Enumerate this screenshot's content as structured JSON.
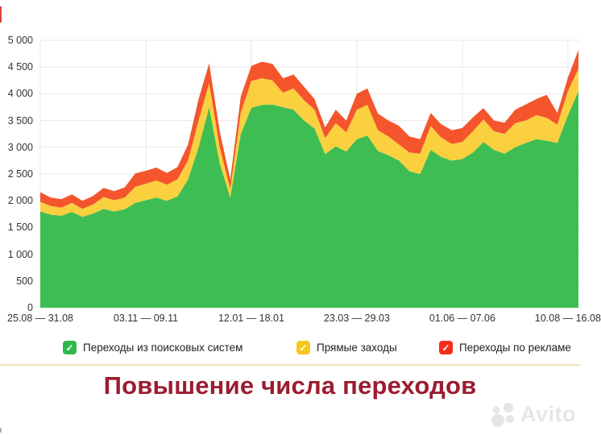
{
  "title": "Повышение числа переходов",
  "watermark": {
    "brand": "Avito"
  },
  "legend": [
    {
      "label": "Переходы из поисковых систем",
      "color": "#2db84b"
    },
    {
      "label": "Прямые заходы",
      "color": "#f7c620"
    },
    {
      "label": "Переходы по рекламе",
      "color": "#f42e17"
    }
  ],
  "colors": {
    "search_area": "#3ebe52",
    "direct_area": "#fbd03f",
    "ads_area": "#f4552c",
    "grid": "#e8e8e8",
    "axis_text": "#333333",
    "title_text": "#9b1c30",
    "divider": "#f1e2b6",
    "watermark": "#e6e6e6"
  },
  "chart_data": {
    "type": "area",
    "stacked": true,
    "title": "",
    "xlabel": "",
    "ylabel": "",
    "grid": true,
    "legend_position": "bottom",
    "ylim": [
      0,
      5000
    ],
    "y_ticks": [
      {
        "value": 0,
        "label": "0"
      },
      {
        "value": 500,
        "label": "500"
      },
      {
        "value": 1000,
        "label": "1 000"
      },
      {
        "value": 1500,
        "label": "1 500"
      },
      {
        "value": 2000,
        "label": "2 000"
      },
      {
        "value": 2500,
        "label": "2 500"
      },
      {
        "value": 3000,
        "label": "3 000"
      },
      {
        "value": 3500,
        "label": "3 500"
      },
      {
        "value": 4000,
        "label": "4 000"
      },
      {
        "value": 4500,
        "label": "4 500"
      },
      {
        "value": 5000,
        "label": "5 000"
      }
    ],
    "x_tick_labels": [
      "25.08 — 31.08",
      "03.11 — 09.11",
      "12.01 — 18.01",
      "23.03 — 29.03",
      "01.06 — 07.06",
      "10.08 — 16.08"
    ],
    "x_tick_indices": [
      0,
      10,
      20,
      30,
      40,
      50
    ],
    "x_unit": "weeks",
    "series": [
      {
        "name": "Переходы из поисковых систем",
        "color": "#3ebe52",
        "values": [
          1800,
          1740,
          1720,
          1790,
          1700,
          1760,
          1850,
          1800,
          1840,
          1960,
          2010,
          2060,
          2000,
          2080,
          2400,
          3000,
          3750,
          2700,
          2060,
          3250,
          3740,
          3790,
          3800,
          3750,
          3700,
          3500,
          3350,
          2870,
          3020,
          2920,
          3150,
          3220,
          2930,
          2850,
          2750,
          2550,
          2500,
          2950,
          2820,
          2750,
          2780,
          2900,
          3100,
          2950,
          2880,
          3000,
          3080,
          3150,
          3120,
          3080,
          3600,
          4050
        ]
      },
      {
        "name": "Прямые заходы",
        "color": "#fbd03f",
        "values": [
          180,
          160,
          150,
          170,
          150,
          170,
          220,
          210,
          220,
          300,
          310,
          320,
          300,
          320,
          350,
          500,
          450,
          300,
          160,
          400,
          500,
          500,
          450,
          270,
          400,
          380,
          350,
          300,
          430,
          360,
          550,
          570,
          390,
          350,
          300,
          350,
          380,
          450,
          360,
          310,
          320,
          400,
          420,
          350,
          370,
          450,
          420,
          450,
          430,
          340,
          450,
          420
        ]
      },
      {
        "name": "Переходы по рекламе",
        "color": "#f4552c",
        "values": [
          180,
          160,
          160,
          160,
          150,
          160,
          170,
          170,
          190,
          250,
          240,
          240,
          220,
          230,
          300,
          400,
          370,
          300,
          180,
          300,
          280,
          310,
          310,
          270,
          260,
          250,
          200,
          200,
          250,
          220,
          300,
          310,
          310,
          300,
          350,
          300,
          270,
          240,
          250,
          260,
          260,
          260,
          210,
          200,
          210,
          250,
          300,
          300,
          430,
          220,
          250,
          350
        ]
      }
    ]
  }
}
